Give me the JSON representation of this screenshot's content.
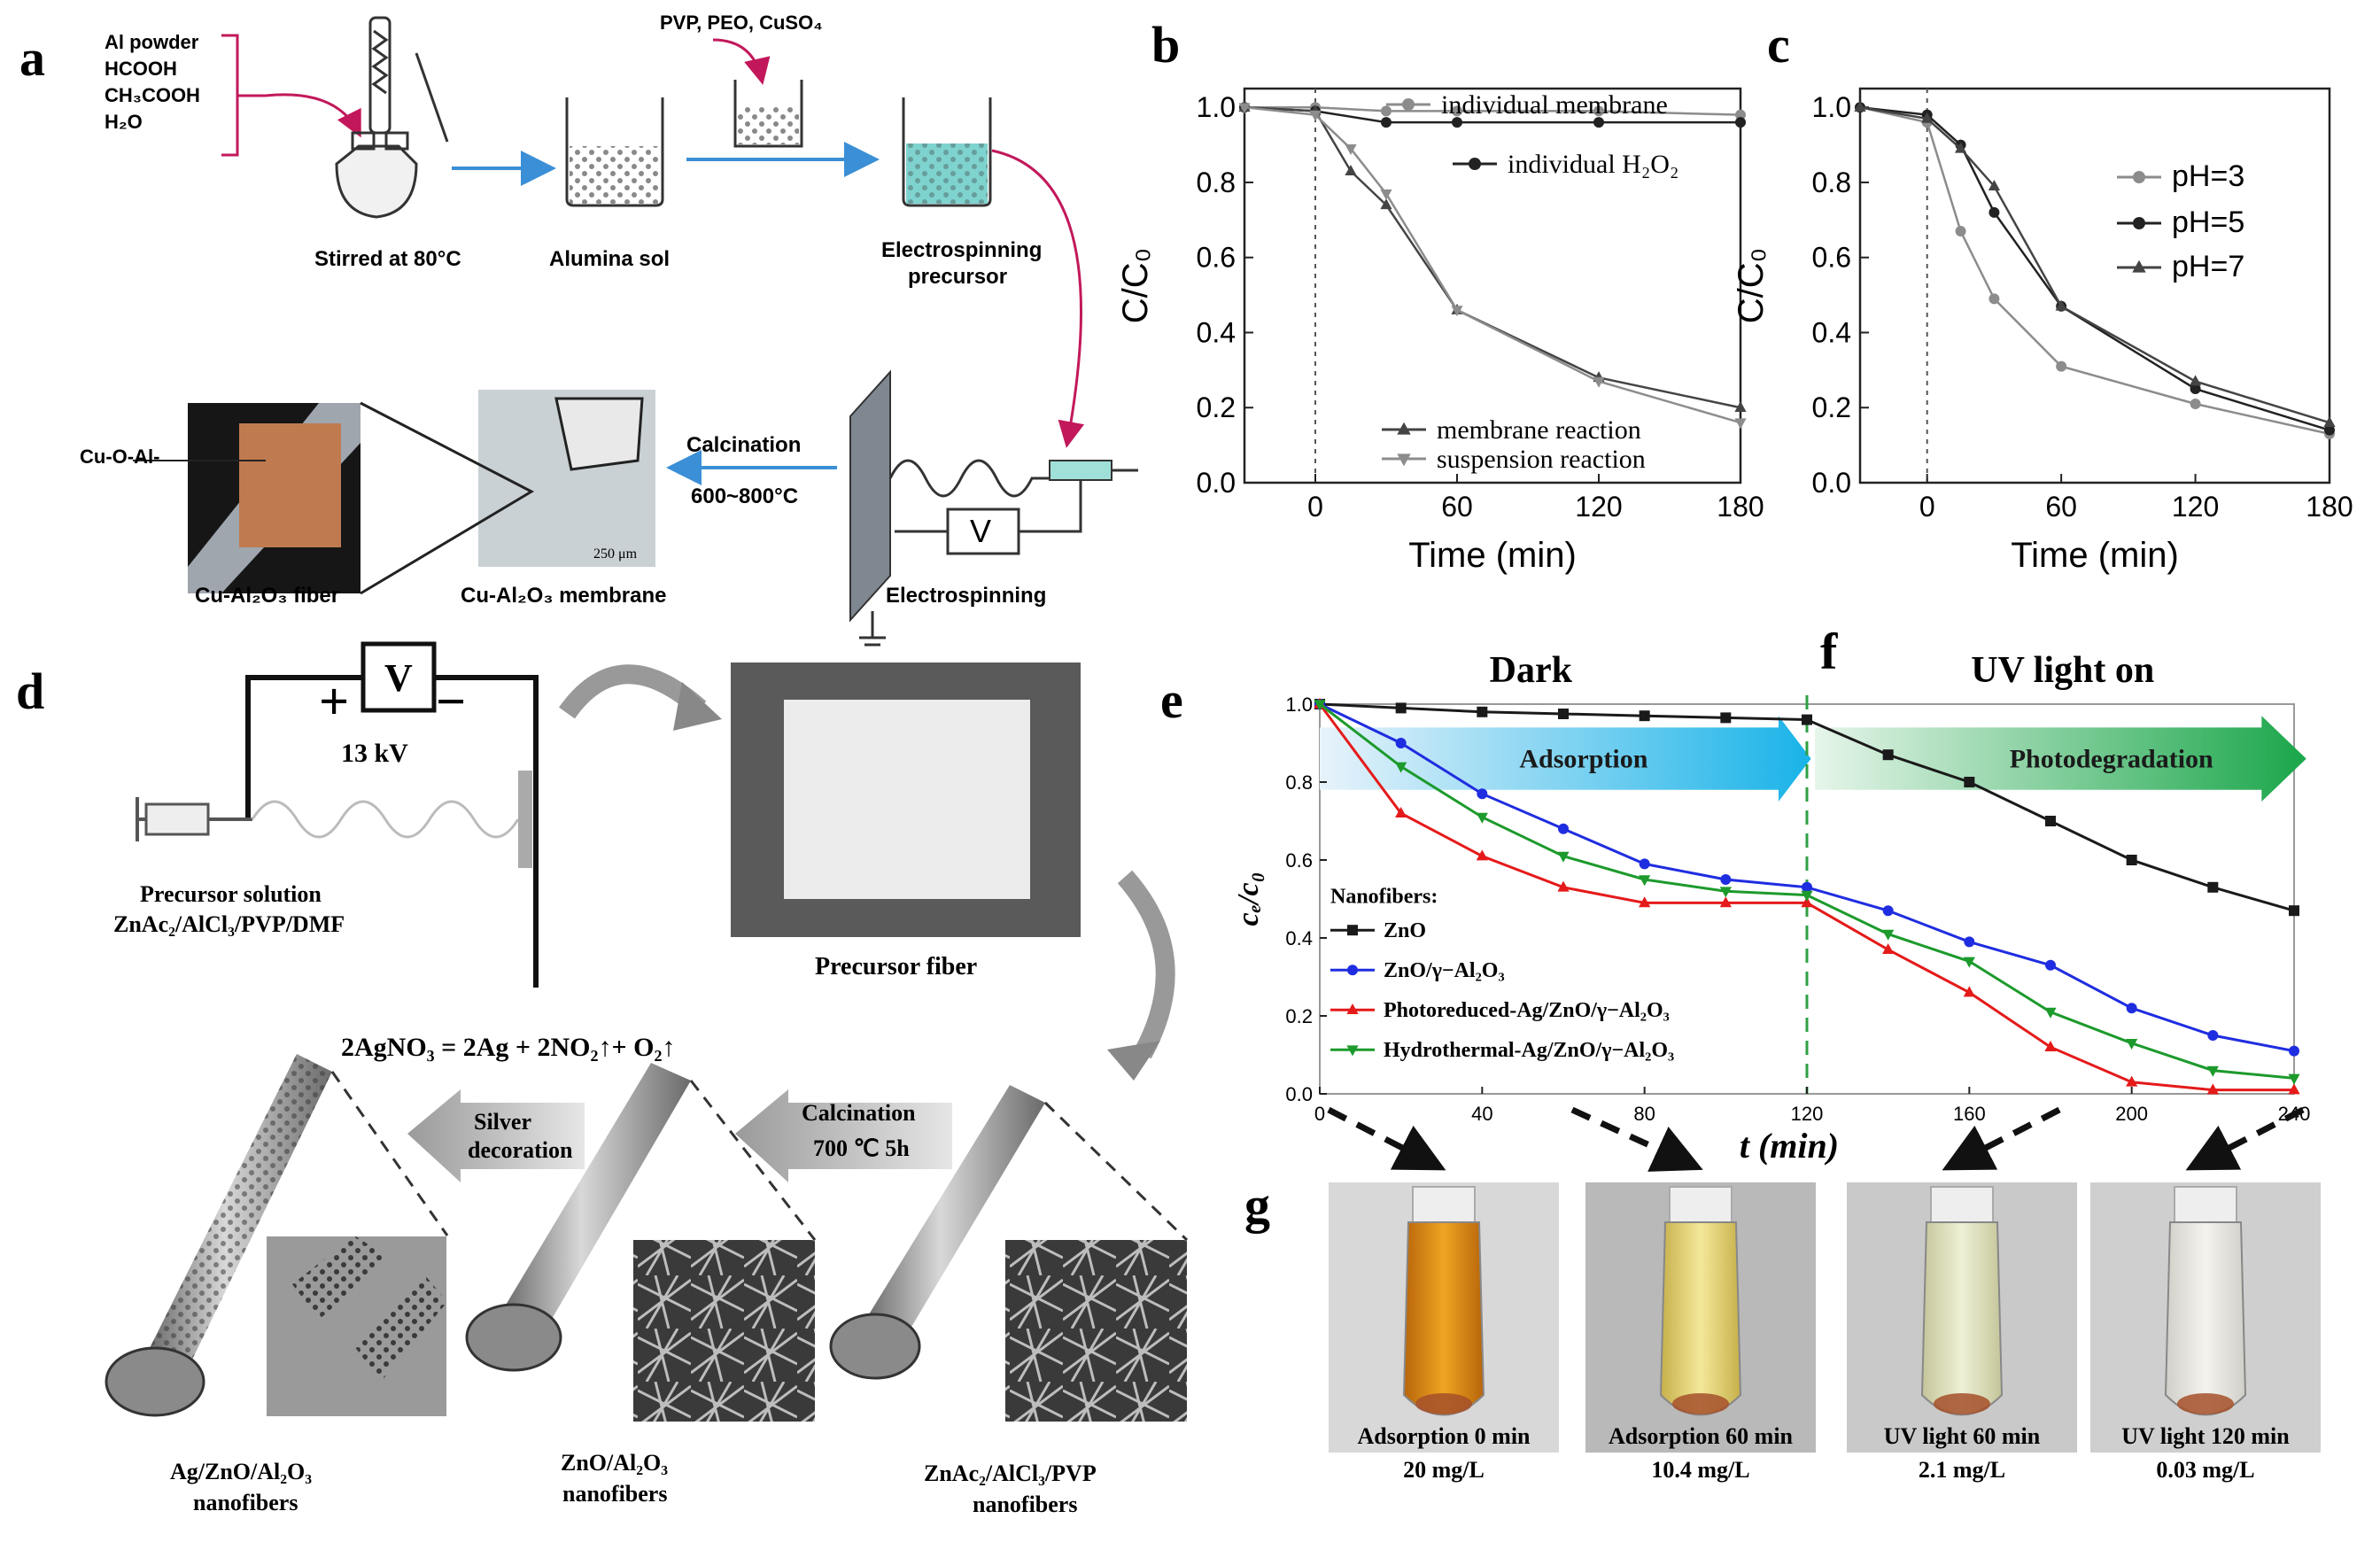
{
  "panel_labels": {
    "a": "a",
    "b": "b",
    "c": "c",
    "d": "d",
    "e": "e",
    "f": "f",
    "g": "g"
  },
  "panel_a": {
    "reagents": [
      "Al powder",
      "HCOOH",
      "CH₃COOH",
      "H₂O"
    ],
    "additives": "PVP, PEO, CuSO₄",
    "step_stirred": "Stirred at 80°C",
    "step_sol": "Alumina sol",
    "step_precursor_1": "Electrospinning",
    "step_precursor_2": "precursor",
    "step_electrospinning": "Electrospinning",
    "calcination": "Calcination",
    "calcination_temp": "600~800°C",
    "membrane": "Cu-Al₂O₃ membrane",
    "fiber": "Cu-Al₂O₃ fiber",
    "bond": "Cu-O-Al-",
    "voltage": "V",
    "scale": "250 μm"
  },
  "panel_d": {
    "voltage_box": "V",
    "plus": "+",
    "minus": "−",
    "kv": "13 kV",
    "precursor_1": "Precursor solution",
    "precursor_2": "ZnAc₂/AlCl₃/PVP/DMF",
    "precursor_fiber": "Precursor fiber",
    "reaction": "2AgNO₃ = 2Ag + 2NO₂↑+ O₂↑",
    "silver_1": "Silver",
    "silver_2": "decoration",
    "calc_1": "Calcination",
    "calc_2": "700 ℃ 5h",
    "fiber1_1": "Ag/ZnO/Al₂O₃",
    "fiber1_2": "nanofibers",
    "fiber2_1": "ZnO/Al₂O₃",
    "fiber2_2": "nanofibers",
    "fiber3_1": "ZnAc₂/AlCl₃/PVP",
    "fiber3_2": "nanofibers"
  },
  "panel_g": {
    "vials": [
      {
        "label": "Adsorption 0 min",
        "conc": "20 mg/L"
      },
      {
        "label": "Adsorption 60 min",
        "conc": "10.4 mg/L"
      },
      {
        "label": "UV light 60 min",
        "conc": "2.1 mg/L"
      },
      {
        "label": "UV light 120 min",
        "conc": "0.03 mg/L"
      }
    ]
  },
  "colors": {
    "gray_light": "#8c8c8c",
    "gray_dark": "#222222",
    "zno": "#1a1a1a",
    "zno_al2o3": "#1f2de0",
    "photo_ag": "#e51a1a",
    "hydro_ag": "#1c9a2c",
    "adsorption_arrow": "#19b3e8",
    "photodeg_arrow": "#1aa64a"
  },
  "chart_data": [
    {
      "id": "b",
      "type": "line",
      "xlabel": "Time (min)",
      "ylabel": "C/C₀",
      "xlim": [
        -30,
        180
      ],
      "ylim": [
        0,
        1.05
      ],
      "xticks": [
        0,
        60,
        120,
        180
      ],
      "yticks": [
        0.0,
        0.2,
        0.4,
        0.6,
        0.8,
        1.0
      ],
      "grid": false,
      "series": [
        {
          "name": "individual membrane",
          "x": [
            -30,
            0,
            30,
            60,
            120,
            180
          ],
          "y": [
            1.0,
            1.0,
            0.99,
            0.99,
            0.99,
            0.98
          ]
        },
        {
          "name": "individual H₂O₂",
          "x": [
            -30,
            0,
            30,
            60,
            120,
            180
          ],
          "y": [
            1.0,
            0.99,
            0.96,
            0.96,
            0.96,
            0.96
          ]
        },
        {
          "name": "membrane reaction",
          "x": [
            -30,
            0,
            15,
            30,
            60,
            120,
            180
          ],
          "y": [
            1.0,
            0.99,
            0.83,
            0.74,
            0.46,
            0.28,
            0.2
          ]
        },
        {
          "name": "suspension reaction",
          "x": [
            -30,
            0,
            15,
            30,
            60,
            120,
            180
          ],
          "y": [
            1.0,
            0.98,
            0.89,
            0.77,
            0.46,
            0.27,
            0.16
          ]
        }
      ]
    },
    {
      "id": "c",
      "type": "line",
      "xlabel": "Time (min)",
      "ylabel": "C/C₀",
      "xlim": [
        -30,
        180
      ],
      "ylim": [
        0,
        1.05
      ],
      "xticks": [
        0,
        60,
        120,
        180
      ],
      "yticks": [
        0.0,
        0.2,
        0.4,
        0.6,
        0.8,
        1.0
      ],
      "grid": false,
      "legend": "right",
      "series": [
        {
          "name": "pH=3",
          "x": [
            -30,
            0,
            15,
            30,
            60,
            120,
            180
          ],
          "y": [
            1.0,
            0.96,
            0.67,
            0.49,
            0.31,
            0.21,
            0.13
          ]
        },
        {
          "name": "pH=5",
          "x": [
            -30,
            0,
            15,
            30,
            60,
            120,
            180
          ],
          "y": [
            1.0,
            0.98,
            0.9,
            0.72,
            0.47,
            0.25,
            0.14
          ]
        },
        {
          "name": "pH=7",
          "x": [
            -30,
            0,
            15,
            30,
            60,
            120,
            180
          ],
          "y": [
            1.0,
            0.97,
            0.89,
            0.79,
            0.47,
            0.27,
            0.16
          ]
        }
      ]
    },
    {
      "id": "e",
      "type": "line",
      "title_left": "Dark",
      "title_right": "UV light on",
      "xlabel": "t (min)",
      "ylabel": "cₑ/c₀",
      "xlim": [
        0,
        240
      ],
      "ylim": [
        0,
        1.0
      ],
      "xticks": [
        0,
        40,
        80,
        120,
        160,
        200,
        240
      ],
      "yticks": [
        0.0,
        0.2,
        0.4,
        0.6,
        0.8,
        1.0
      ],
      "divider_x": 120,
      "arrow_left": "Adsorption",
      "arrow_right": "Photodegradation",
      "legend_title": "Nanofibers:",
      "grid": false,
      "x": [
        0,
        20,
        40,
        60,
        80,
        100,
        120,
        140,
        160,
        180,
        200,
        220,
        240
      ],
      "series": [
        {
          "name": "ZnO",
          "y": [
            1.0,
            0.99,
            0.98,
            0.975,
            0.97,
            0.965,
            0.96,
            0.87,
            0.8,
            0.7,
            0.6,
            0.53,
            0.47
          ]
        },
        {
          "name": "ZnO/γ−Al₂O₃",
          "y": [
            1.0,
            0.9,
            0.77,
            0.68,
            0.59,
            0.55,
            0.53,
            0.47,
            0.39,
            0.33,
            0.22,
            0.15,
            0.11
          ]
        },
        {
          "name": "Photoreduced-Ag/ZnO/γ−Al₂O₃",
          "y": [
            1.0,
            0.72,
            0.61,
            0.53,
            0.49,
            0.49,
            0.49,
            0.37,
            0.26,
            0.12,
            0.03,
            0.01,
            0.01
          ]
        },
        {
          "name": "Hydrothermal-Ag/ZnO/γ−Al₂O₃",
          "y": [
            1.0,
            0.84,
            0.71,
            0.61,
            0.55,
            0.52,
            0.51,
            0.41,
            0.34,
            0.21,
            0.13,
            0.06,
            0.04
          ]
        }
      ]
    }
  ]
}
